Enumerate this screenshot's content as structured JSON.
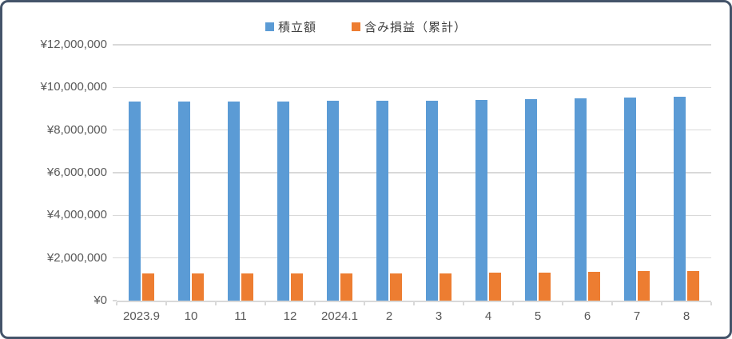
{
  "chart_data": {
    "type": "bar",
    "title": "",
    "categories": [
      "2023.9",
      "10",
      "11",
      "12",
      "2024.1",
      "2",
      "3",
      "4",
      "5",
      "6",
      "7",
      "8"
    ],
    "series": [
      {
        "name": "積立額",
        "color": "#5B9BD5",
        "values": [
          9330000,
          9330000,
          9340000,
          9350000,
          9360000,
          9360000,
          9370000,
          9410000,
          9450000,
          9490000,
          9540000,
          9580000
        ]
      },
      {
        "name": "含み損益（累計）",
        "color": "#ED7D31",
        "values": [
          1260000,
          1260000,
          1260000,
          1260000,
          1260000,
          1270000,
          1280000,
          1310000,
          1330000,
          1350000,
          1390000,
          1370000
        ]
      }
    ],
    "xlabel": "",
    "ylabel": "",
    "ylim": [
      0,
      12000000
    ],
    "ytick_step": 2000000,
    "ytick_labels": [
      "¥0",
      "¥2,000,000",
      "¥4,000,000",
      "¥6,000,000",
      "¥8,000,000",
      "¥10,000,000",
      "¥12,000,000"
    ],
    "grid": true,
    "legend_position": "top"
  },
  "colors": {
    "series_blue": "#5B9BD5",
    "series_orange": "#ED7D31",
    "gridline": "#D9D9D9",
    "axis_text": "#595959",
    "legend_text": "#404040",
    "frame_border": "#44546A",
    "background": "#FFFFFF"
  }
}
